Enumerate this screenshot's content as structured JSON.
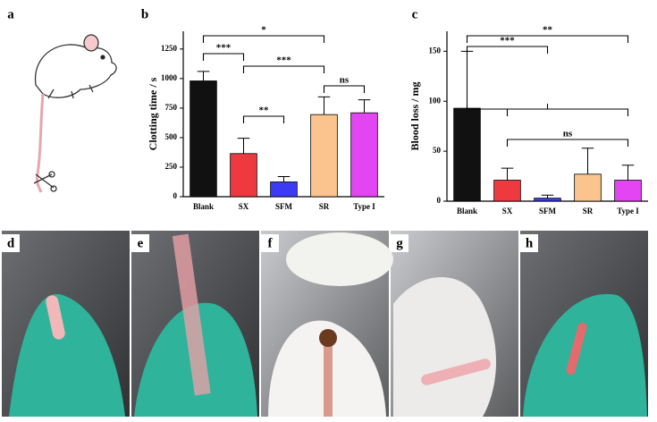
{
  "panel_labels": [
    "a",
    "b",
    "c",
    "d",
    "e",
    "f",
    "g",
    "h"
  ],
  "chart_data": [
    {
      "type": "bar",
      "y_label": "Clotting time / s",
      "categories": [
        "Blank",
        "SX",
        "SFM",
        "SR",
        "Type I"
      ],
      "values": [
        980,
        365,
        125,
        695,
        710
      ],
      "errors": [
        80,
        130,
        45,
        150,
        110
      ],
      "colors": [
        "#111111",
        "#ee3a3f",
        "#3b3bf5",
        "#fbc48e",
        "#e445f2"
      ],
      "ylim": [
        0,
        1400
      ],
      "yticks": [
        0,
        250,
        500,
        750,
        1000,
        1250
      ],
      "annotations": [
        {
          "text": "*",
          "from": 0,
          "to": 3
        },
        {
          "text": "***",
          "from": 0,
          "to": 1
        },
        {
          "text": "***",
          "from": 1,
          "to": 3
        },
        {
          "text": "ns",
          "from": 3,
          "to": 4
        },
        {
          "text": "**",
          "from": 1,
          "to": 2
        }
      ]
    },
    {
      "type": "bar",
      "y_label": "Blood loss / mg",
      "categories": [
        "Blank",
        "SX",
        "SFM",
        "SR",
        "Type I"
      ],
      "values": [
        93,
        21,
        3,
        27,
        21
      ],
      "errors": [
        57,
        12,
        3,
        26,
        15
      ],
      "colors": [
        "#111111",
        "#ee3a3f",
        "#3b3bf5",
        "#fbc48e",
        "#e445f2"
      ],
      "ylim": [
        0,
        170
      ],
      "yticks": [
        0,
        50,
        100,
        150
      ],
      "annotations": [
        {
          "text": "**",
          "from": 0,
          "to": 4
        },
        {
          "text": "***",
          "from": 0,
          "to": 2
        },
        {
          "text": "ns",
          "from": 1,
          "to": 4
        }
      ]
    }
  ]
}
